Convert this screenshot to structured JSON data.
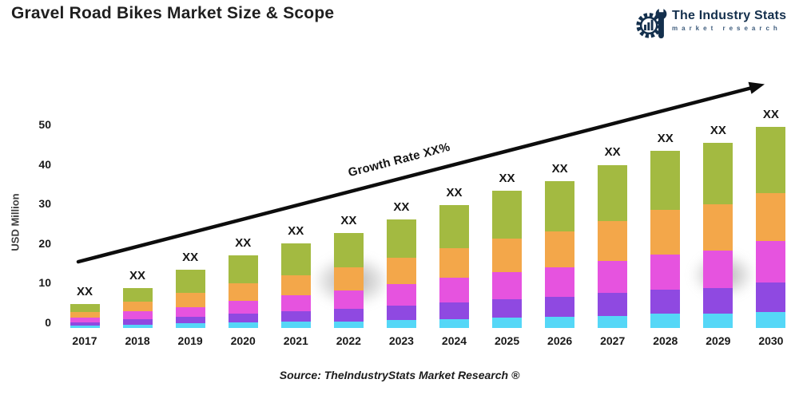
{
  "header": {
    "title": "Gravel Road Bikes Market Size & Scope",
    "logo": {
      "name": "The Industry Stats",
      "tagline": "market research",
      "color": "#14304d"
    }
  },
  "chart_data": {
    "type": "bar",
    "stacked": true,
    "title": "Gravel Road Bikes Market Size & Scope",
    "xlabel": "",
    "ylabel": "USD Million",
    "ylim": [
      0,
      50
    ],
    "yticks": [
      0,
      10,
      20,
      30,
      40,
      50
    ],
    "grid": false,
    "legend": null,
    "categories": [
      "2017",
      "2018",
      "2019",
      "2020",
      "2021",
      "2022",
      "2023",
      "2024",
      "2025",
      "2026",
      "2027",
      "2028",
      "2029",
      "2030"
    ],
    "series": [
      {
        "name": "cyan-segment",
        "color": "#55d7f7",
        "values": [
          0.5,
          0.8,
          1.1,
          1.3,
          1.5,
          1.6,
          1.9,
          2.2,
          2.5,
          2.7,
          3.0,
          3.5,
          3.6,
          4.0
        ]
      },
      {
        "name": "purple-segment",
        "color": "#8f49e1",
        "values": [
          0.9,
          1.4,
          1.7,
          2.2,
          2.7,
          3.2,
          3.7,
          4.2,
          4.7,
          5.1,
          5.7,
          6.0,
          6.4,
          7.3
        ]
      },
      {
        "name": "magenta-segment",
        "color": "#e653df",
        "values": [
          1.2,
          1.9,
          2.4,
          3.3,
          3.9,
          4.6,
          5.3,
          6.0,
          6.7,
          7.2,
          8.0,
          8.8,
          9.2,
          10.3
        ]
      },
      {
        "name": "orange-segment",
        "color": "#f3a74a",
        "values": [
          1.4,
          2.4,
          3.6,
          4.3,
          5.0,
          5.7,
          6.6,
          7.4,
          8.3,
          8.9,
          9.9,
          11.0,
          11.4,
          11.9
        ]
      },
      {
        "name": "green-segment",
        "color": "#a3ba41",
        "values": [
          2.0,
          3.5,
          5.7,
          6.9,
          7.9,
          8.4,
          9.5,
          10.7,
          11.8,
          12.6,
          13.9,
          14.7,
          15.4,
          16.5
        ]
      }
    ],
    "totals_estimated": [
      6,
      10,
      14.5,
      18,
      21,
      23.5,
      27,
      30.5,
      34,
      36.5,
      40.5,
      44,
      46,
      50
    ],
    "annotations": {
      "bar_top_label": "XX",
      "growth_arrow_label": "Growth Rate XX%"
    }
  },
  "footer": {
    "source": "Source: TheIndustryStats Market Research ®"
  }
}
